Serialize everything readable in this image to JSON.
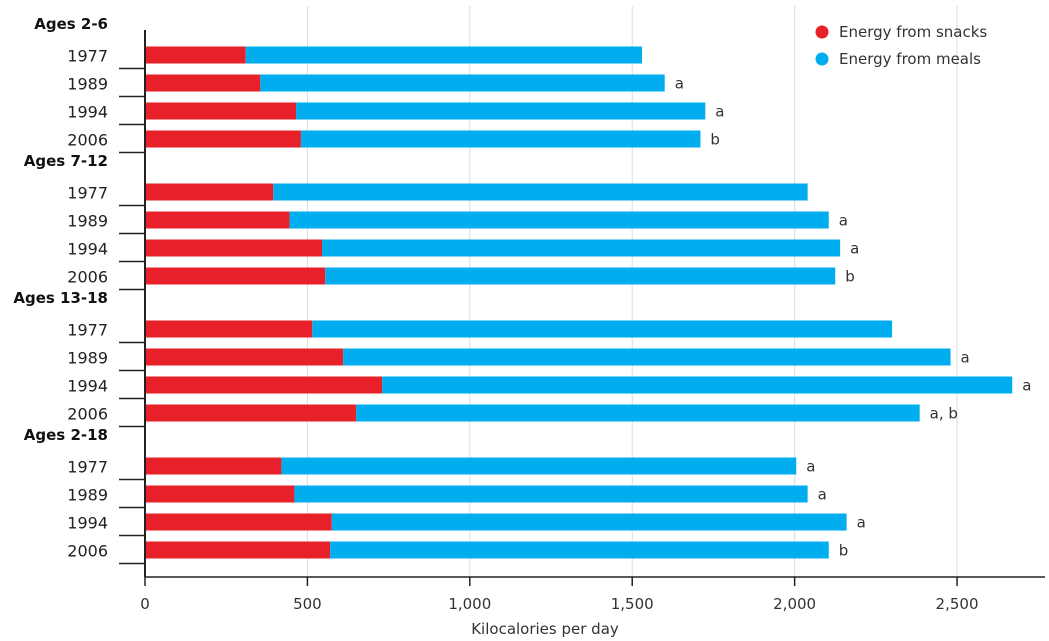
{
  "chart_data": {
    "type": "bar",
    "orientation": "horizontal",
    "stacked": true,
    "xlabel": "Kilocalories per day",
    "xlim": [
      0,
      2700
    ],
    "xticks": [
      0,
      500,
      1000,
      1500,
      2000,
      2500
    ],
    "xtick_labels": [
      "0",
      "500",
      "1,000",
      "1,500",
      "2,000",
      "2,500"
    ],
    "grid": "vertical",
    "legend_position": "top-right",
    "colors": {
      "snacks": "#e8202a",
      "meals": "#00aeef"
    },
    "legend": [
      {
        "key": "snacks",
        "label": "Energy from snacks"
      },
      {
        "key": "meals",
        "label": "Energy from meals"
      }
    ],
    "groups": [
      {
        "label": "Ages 2-6",
        "bars": [
          {
            "year": "1977",
            "snacks": 310,
            "meals": 1220,
            "note": ""
          },
          {
            "year": "1989",
            "snacks": 355,
            "meals": 1245,
            "note": "a"
          },
          {
            "year": "1994",
            "snacks": 465,
            "meals": 1260,
            "note": "a"
          },
          {
            "year": "2006",
            "snacks": 480,
            "meals": 1230,
            "note": "b"
          }
        ]
      },
      {
        "label": "Ages 7-12",
        "bars": [
          {
            "year": "1977",
            "snacks": 395,
            "meals": 1645,
            "note": ""
          },
          {
            "year": "1989",
            "snacks": 445,
            "meals": 1660,
            "note": "a"
          },
          {
            "year": "1994",
            "snacks": 545,
            "meals": 1595,
            "note": "a"
          },
          {
            "year": "2006",
            "snacks": 555,
            "meals": 1570,
            "note": "b"
          }
        ]
      },
      {
        "label": "Ages 13-18",
        "bars": [
          {
            "year": "1977",
            "snacks": 515,
            "meals": 1785,
            "note": ""
          },
          {
            "year": "1989",
            "snacks": 610,
            "meals": 1870,
            "note": "a"
          },
          {
            "year": "1994",
            "snacks": 730,
            "meals": 1940,
            "note": "a"
          },
          {
            "year": "2006",
            "snacks": 650,
            "meals": 1735,
            "note": "a, b"
          }
        ]
      },
      {
        "label": "Ages 2-18",
        "bars": [
          {
            "year": "1977",
            "snacks": 420,
            "meals": 1585,
            "note": "a"
          },
          {
            "year": "1989",
            "snacks": 460,
            "meals": 1580,
            "note": "a"
          },
          {
            "year": "1994",
            "snacks": 575,
            "meals": 1585,
            "note": "a"
          },
          {
            "year": "2006",
            "snacks": 570,
            "meals": 1535,
            "note": "b"
          }
        ]
      }
    ]
  }
}
